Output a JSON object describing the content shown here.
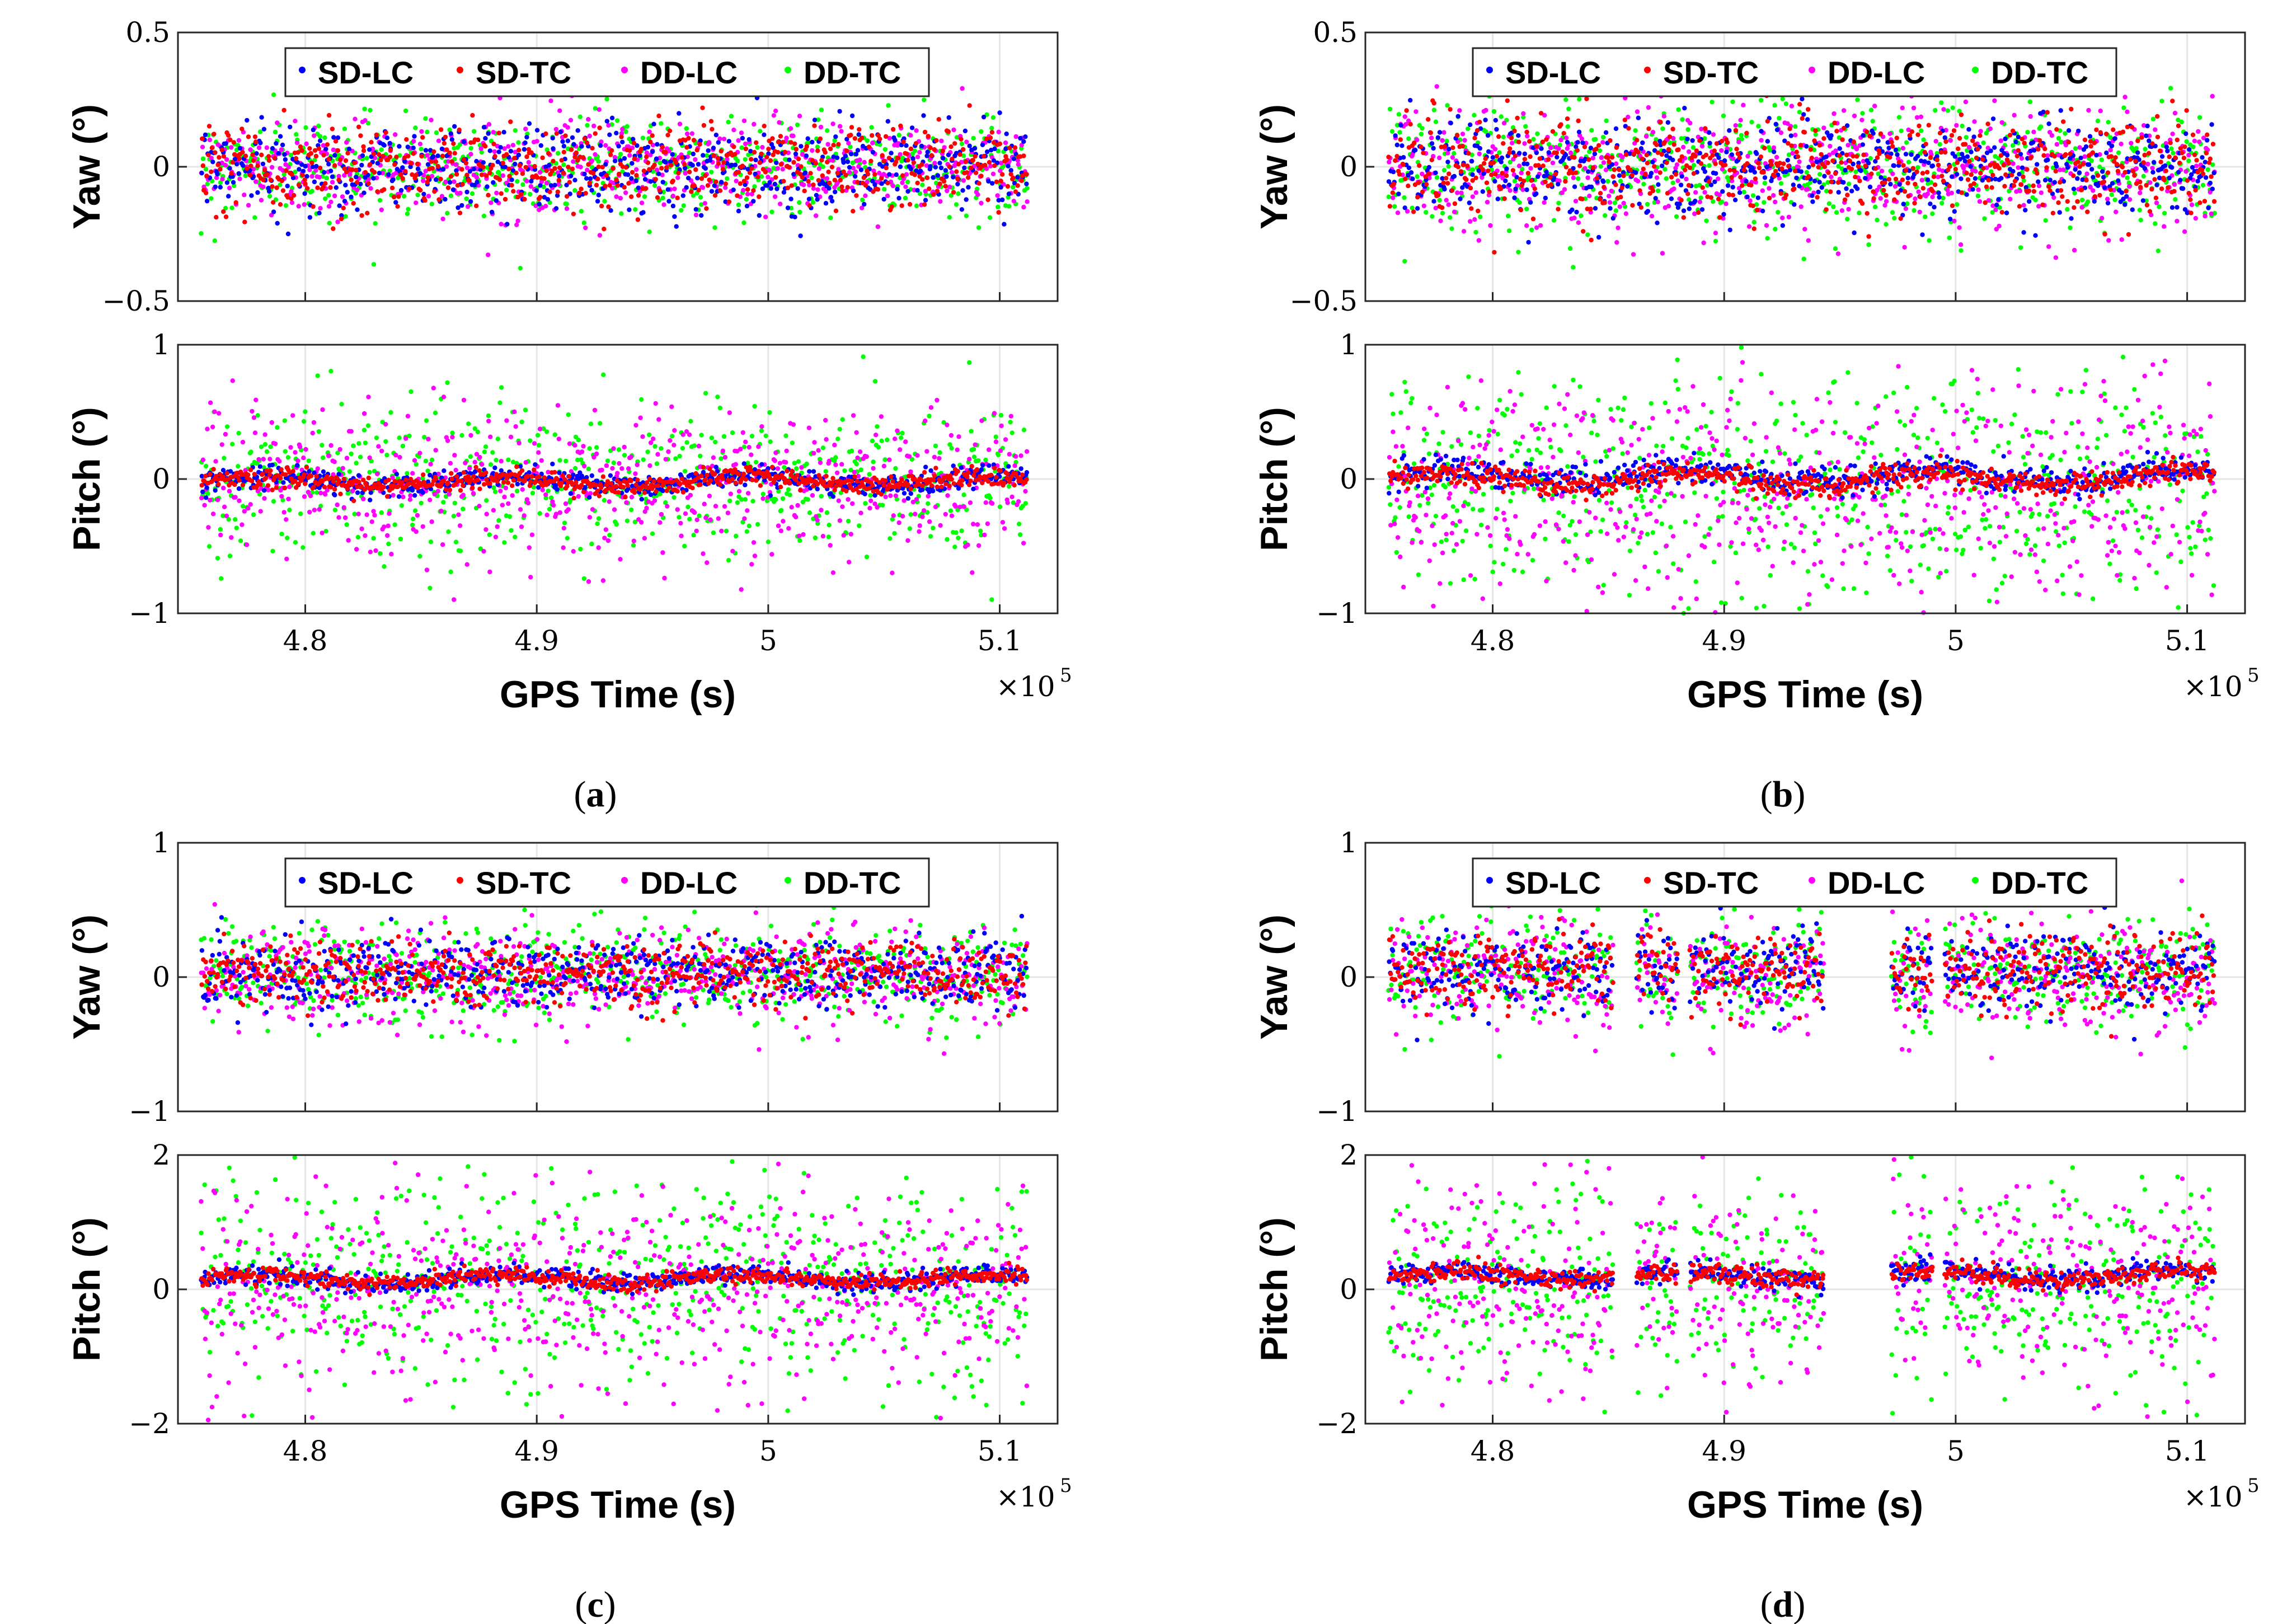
{
  "chart_data": [
    {
      "type": "scatter",
      "panel_label": "a",
      "title": "",
      "xlabel": "GPS Time (s)",
      "x_exponent": {
        "base": "×10",
        "power": "5"
      },
      "x_range": [
        4.745,
        5.125
      ],
      "x_ticks": [
        {
          "value": 4.8,
          "label": "4.8"
        },
        {
          "value": 4.9,
          "label": "4.9"
        },
        {
          "value": 5.0,
          "label": "5"
        },
        {
          "value": 5.1,
          "label": "5.1"
        }
      ],
      "data_x_range": [
        4.755,
        5.112
      ],
      "grid": true,
      "legend": {
        "placement": "top-center",
        "entries": [
          {
            "name": "SD-LC",
            "color": "#0000ff"
          },
          {
            "name": "SD-TC",
            "color": "#ff0000"
          },
          {
            "name": "DD-LC",
            "color": "#ff00ff"
          },
          {
            "name": "DD-TC",
            "color": "#00ff00"
          }
        ]
      },
      "subplots": [
        {
          "ylabel": "Yaw (°)",
          "ylim": [
            -0.5,
            0.5
          ],
          "y_ticks": [
            {
              "value": 0.5,
              "label": "0.5"
            },
            {
              "value": 0,
              "label": "0"
            },
            {
              "value": -0.5,
              "label": "−0.5"
            }
          ],
          "series": [
            {
              "name": "SD-LC",
              "mean": 0.0,
              "std": 0.08
            },
            {
              "name": "SD-TC",
              "mean": 0.0,
              "std": 0.08
            },
            {
              "name": "DD-LC",
              "mean": 0.0,
              "std": 0.085
            },
            {
              "name": "DD-TC",
              "mean": 0.0,
              "std": 0.09
            }
          ]
        },
        {
          "ylabel": "Pitch (°)",
          "ylim": [
            -1,
            1
          ],
          "y_ticks": [
            {
              "value": 1,
              "label": "1"
            },
            {
              "value": 0,
              "label": "0"
            },
            {
              "value": -1,
              "label": "−1"
            }
          ],
          "series": [
            {
              "name": "SD-LC",
              "mean": -0.02,
              "std": 0.04,
              "trend": "smooth"
            },
            {
              "name": "SD-TC",
              "mean": -0.02,
              "std": 0.035,
              "trend": "smooth"
            },
            {
              "name": "DD-LC",
              "mean": -0.05,
              "std": 0.28
            },
            {
              "name": "DD-TC",
              "mean": 0.0,
              "std": 0.28
            }
          ]
        }
      ]
    },
    {
      "type": "scatter",
      "panel_label": "b",
      "title": "",
      "xlabel": "GPS Time (s)",
      "x_exponent": {
        "base": "×10",
        "power": "5"
      },
      "x_range": [
        4.745,
        5.125
      ],
      "x_ticks": [
        {
          "value": 4.8,
          "label": "4.8"
        },
        {
          "value": 4.9,
          "label": "4.9"
        },
        {
          "value": 5.0,
          "label": "5"
        },
        {
          "value": 5.1,
          "label": "5.1"
        }
      ],
      "data_x_range": [
        4.755,
        5.112
      ],
      "grid": true,
      "legend": {
        "placement": "top-center",
        "entries": [
          {
            "name": "SD-LC",
            "color": "#0000ff"
          },
          {
            "name": "SD-TC",
            "color": "#ff0000"
          },
          {
            "name": "DD-LC",
            "color": "#ff00ff"
          },
          {
            "name": "DD-TC",
            "color": "#00ff00"
          }
        ]
      },
      "subplots": [
        {
          "ylabel": "Yaw (°)",
          "ylim": [
            -0.5,
            0.5
          ],
          "y_ticks": [
            {
              "value": 0.5,
              "label": "0.5"
            },
            {
              "value": 0,
              "label": "0"
            },
            {
              "value": -0.5,
              "label": "−0.5"
            }
          ],
          "series": [
            {
              "name": "SD-LC",
              "mean": 0.0,
              "std": 0.09
            },
            {
              "name": "SD-TC",
              "mean": 0.0,
              "std": 0.09
            },
            {
              "name": "DD-LC",
              "mean": 0.0,
              "std": 0.11
            },
            {
              "name": "DD-TC",
              "mean": 0.0,
              "std": 0.12
            }
          ]
        },
        {
          "ylabel": "Pitch (°)",
          "ylim": [
            -1,
            1
          ],
          "y_ticks": [
            {
              "value": 1,
              "label": "1"
            },
            {
              "value": 0,
              "label": "0"
            },
            {
              "value": -1,
              "label": "−1"
            }
          ],
          "series": [
            {
              "name": "SD-LC",
              "mean": 0.02,
              "std": 0.05,
              "trend": "smooth"
            },
            {
              "name": "SD-TC",
              "mean": 0.0,
              "std": 0.045,
              "trend": "smooth"
            },
            {
              "name": "DD-LC",
              "mean": -0.1,
              "std": 0.45
            },
            {
              "name": "DD-TC",
              "mean": -0.05,
              "std": 0.45
            }
          ]
        }
      ]
    },
    {
      "type": "scatter",
      "panel_label": "c",
      "title": "",
      "xlabel": "GPS Time (s)",
      "x_exponent": {
        "base": "×10",
        "power": "5"
      },
      "x_range": [
        4.745,
        5.125
      ],
      "x_ticks": [
        {
          "value": 4.8,
          "label": "4.8"
        },
        {
          "value": 4.9,
          "label": "4.9"
        },
        {
          "value": 5.0,
          "label": "5"
        },
        {
          "value": 5.1,
          "label": "5.1"
        }
      ],
      "data_x_range": [
        4.755,
        5.112
      ],
      "grid": true,
      "legend": {
        "placement": "top-center",
        "entries": [
          {
            "name": "SD-LC",
            "color": "#0000ff"
          },
          {
            "name": "SD-TC",
            "color": "#ff0000"
          },
          {
            "name": "DD-LC",
            "color": "#ff00ff"
          },
          {
            "name": "DD-TC",
            "color": "#00ff00"
          }
        ]
      },
      "subplots": [
        {
          "ylabel": "Yaw (°)",
          "ylim": [
            -1,
            1
          ],
          "y_ticks": [
            {
              "value": 1,
              "label": "1"
            },
            {
              "value": 0,
              "label": "0"
            },
            {
              "value": -1,
              "label": "−1"
            }
          ],
          "series": [
            {
              "name": "SD-LC",
              "mean": 0.03,
              "std": 0.13
            },
            {
              "name": "SD-TC",
              "mean": 0.03,
              "std": 0.12
            },
            {
              "name": "DD-LC",
              "mean": 0.0,
              "std": 0.18
            },
            {
              "name": "DD-TC",
              "mean": 0.03,
              "std": 0.2
            }
          ]
        },
        {
          "ylabel": "Pitch (°)",
          "ylim": [
            -2,
            2
          ],
          "y_ticks": [
            {
              "value": 2,
              "label": "2"
            },
            {
              "value": 0,
              "label": "0"
            },
            {
              "value": -2,
              "label": "−2"
            }
          ],
          "series": [
            {
              "name": "SD-LC",
              "mean": 0.15,
              "std": 0.07,
              "trend": "smooth"
            },
            {
              "name": "SD-TC",
              "mean": 0.15,
              "std": 0.06,
              "trend": "smooth"
            },
            {
              "name": "DD-LC",
              "mean": 0.0,
              "std": 0.8
            },
            {
              "name": "DD-TC",
              "mean": 0.1,
              "std": 0.8
            }
          ]
        }
      ]
    },
    {
      "type": "scatter",
      "panel_label": "d",
      "title": "",
      "xlabel": "GPS Time (s)",
      "x_exponent": {
        "base": "×10",
        "power": "5"
      },
      "x_range": [
        4.745,
        5.125
      ],
      "x_ticks": [
        {
          "value": 4.8,
          "label": "4.8"
        },
        {
          "value": 4.9,
          "label": "4.9"
        },
        {
          "value": 5.0,
          "label": "5"
        },
        {
          "value": 5.1,
          "label": "5.1"
        }
      ],
      "data_x_range": [
        4.755,
        5.112
      ],
      "data_gaps": [
        [
          4.852,
          4.862
        ],
        [
          4.88,
          4.885
        ],
        [
          4.943,
          4.972
        ],
        [
          4.99,
          4.995
        ]
      ],
      "grid": true,
      "legend": {
        "placement": "top-center",
        "entries": [
          {
            "name": "SD-LC",
            "color": "#0000ff"
          },
          {
            "name": "SD-TC",
            "color": "#ff0000"
          },
          {
            "name": "DD-LC",
            "color": "#ff00ff"
          },
          {
            "name": "DD-TC",
            "color": "#00ff00"
          }
        ]
      },
      "subplots": [
        {
          "ylabel": "Yaw (°)",
          "ylim": [
            -1,
            1
          ],
          "y_ticks": [
            {
              "value": 1,
              "label": "1"
            },
            {
              "value": 0,
              "label": "0"
            },
            {
              "value": -1,
              "label": "−1"
            }
          ],
          "series": [
            {
              "name": "SD-LC",
              "mean": 0.05,
              "std": 0.15
            },
            {
              "name": "SD-TC",
              "mean": 0.05,
              "std": 0.14
            },
            {
              "name": "DD-LC",
              "mean": 0.0,
              "std": 0.22
            },
            {
              "name": "DD-TC",
              "mean": 0.05,
              "std": 0.22
            }
          ]
        },
        {
          "ylabel": "Pitch (°)",
          "ylim": [
            -2,
            2
          ],
          "y_ticks": [
            {
              "value": 2,
              "label": "2"
            },
            {
              "value": 0,
              "label": "0"
            },
            {
              "value": -2,
              "label": "−2"
            }
          ],
          "series": [
            {
              "name": "SD-LC",
              "mean": 0.2,
              "std": 0.08,
              "trend": "smooth"
            },
            {
              "name": "SD-TC",
              "mean": 0.2,
              "std": 0.07,
              "trend": "smooth"
            },
            {
              "name": "DD-LC",
              "mean": 0.1,
              "std": 0.8
            },
            {
              "name": "DD-TC",
              "mean": 0.1,
              "std": 0.8
            }
          ]
        }
      ]
    }
  ]
}
